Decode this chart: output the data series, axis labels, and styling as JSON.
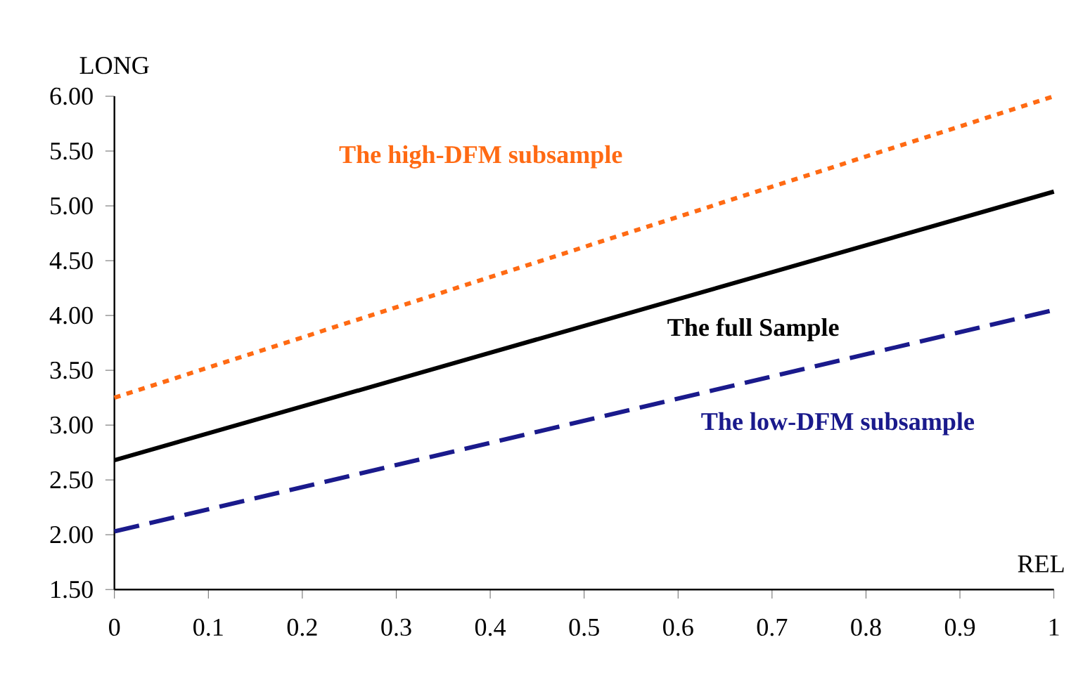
{
  "chart_data": {
    "type": "line",
    "xlabel": "REL",
    "ylabel": "LONG",
    "x": [
      0,
      1
    ],
    "series": [
      {
        "name": "The high-DFM subsample",
        "color": "#ff6a13",
        "values": [
          3.25,
          6.0
        ],
        "line_style": "dotted"
      },
      {
        "name": "The full Sample",
        "color": "#000000",
        "values": [
          2.68,
          5.13
        ],
        "line_style": "solid"
      },
      {
        "name": "The low-DFM subsample",
        "color": "#1a1a8c",
        "values": [
          2.03,
          4.05
        ],
        "line_style": "dashed"
      }
    ],
    "xlim": [
      0,
      1
    ],
    "ylim": [
      1.5,
      6.0
    ],
    "xticks": [
      0,
      0.1,
      0.2,
      0.3,
      0.4,
      0.5,
      0.6,
      0.7,
      0.8,
      0.9,
      1
    ],
    "yticks": [
      {
        "value": 1.5,
        "label": "1.50"
      },
      {
        "value": 2.0,
        "label": "2.00"
      },
      {
        "value": 2.5,
        "label": "2.50"
      },
      {
        "value": 3.0,
        "label": "3.00"
      },
      {
        "value": 3.5,
        "label": "3.50"
      },
      {
        "value": 4.0,
        "label": "4.00"
      },
      {
        "value": 4.5,
        "label": "4.50"
      },
      {
        "value": 5.0,
        "label": "5.00"
      },
      {
        "value": 5.5,
        "label": "5.50"
      },
      {
        "value": 6.0,
        "label": "6.00"
      }
    ],
    "grid": false,
    "marker": "none"
  }
}
